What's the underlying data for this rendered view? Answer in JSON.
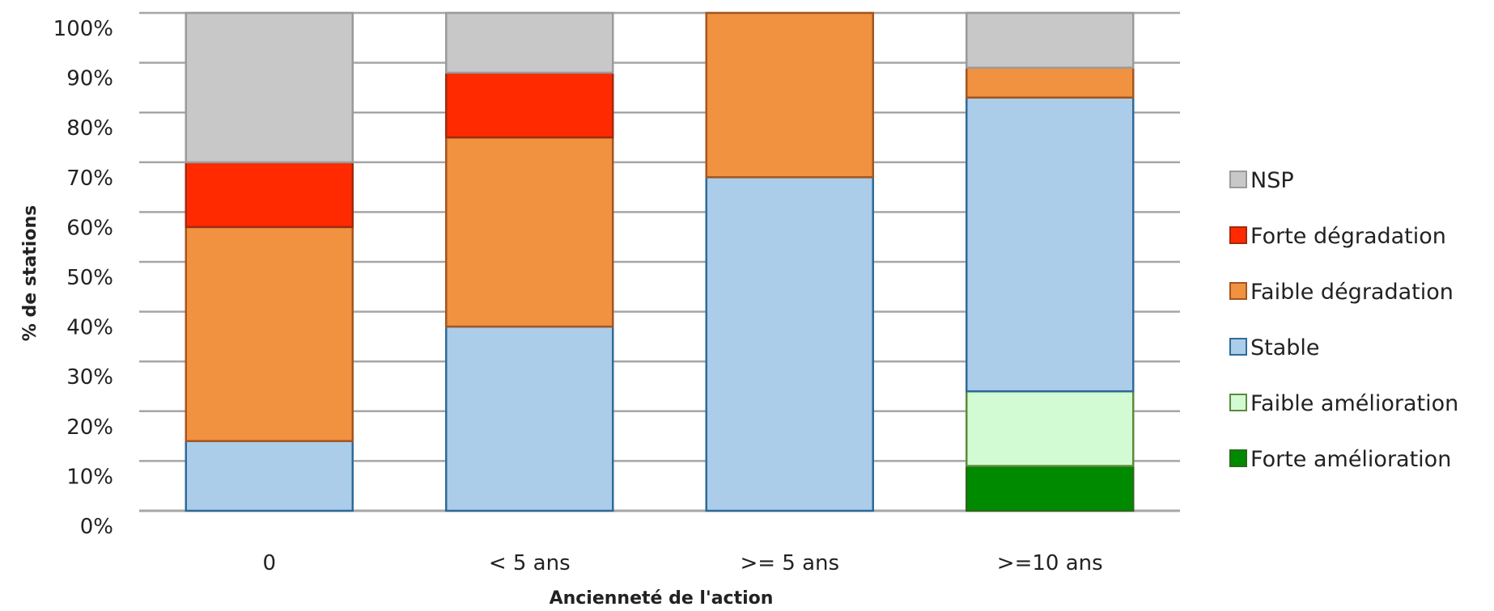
{
  "chart_data": {
    "type": "bar",
    "stacked": true,
    "categories": [
      "0",
      "< 5 ans",
      ">= 5 ans",
      ">=10 ans"
    ],
    "xlabel": "Ancienneté de l'action",
    "ylabel": "% de stations",
    "ylim": [
      0,
      100
    ],
    "yticks": [
      0,
      10,
      20,
      30,
      40,
      50,
      60,
      70,
      80,
      90,
      100
    ],
    "ytick_labels": [
      "0%",
      "10%",
      "20%",
      "30%",
      "40%",
      "50%",
      "60%",
      "70%",
      "80%",
      "90%",
      "100%"
    ],
    "grid": true,
    "legend_position": "right",
    "series": [
      {
        "name": "Forte amélioration",
        "values": [
          0,
          0,
          0,
          9
        ],
        "color": "#008a00",
        "stroke": "#2a6a1a"
      },
      {
        "name": "Faible amélioration",
        "values": [
          0,
          0,
          0,
          15
        ],
        "color": "#d3fbd3",
        "stroke": "#5b8a3c"
      },
      {
        "name": "Stable",
        "values": [
          14,
          37,
          67,
          59
        ],
        "color": "#abcde9",
        "stroke": "#2f6a98"
      },
      {
        "name": "Faible dégradation",
        "values": [
          43,
          38,
          33,
          6
        ],
        "color": "#f19241",
        "stroke": "#a35520"
      },
      {
        "name": "Forte dégradation",
        "values": [
          13,
          13,
          0,
          0
        ],
        "color": "#ff2a00",
        "stroke": "#a02a10"
      },
      {
        "name": "NSP",
        "values": [
          30,
          12,
          0,
          11
        ],
        "color": "#c8c8c8",
        "stroke": "#9a9a9a"
      }
    ],
    "legend_order": [
      "NSP",
      "Forte dégradation",
      "Faible dégradation",
      "Stable",
      "Faible amélioration",
      "Forte amélioration"
    ]
  }
}
